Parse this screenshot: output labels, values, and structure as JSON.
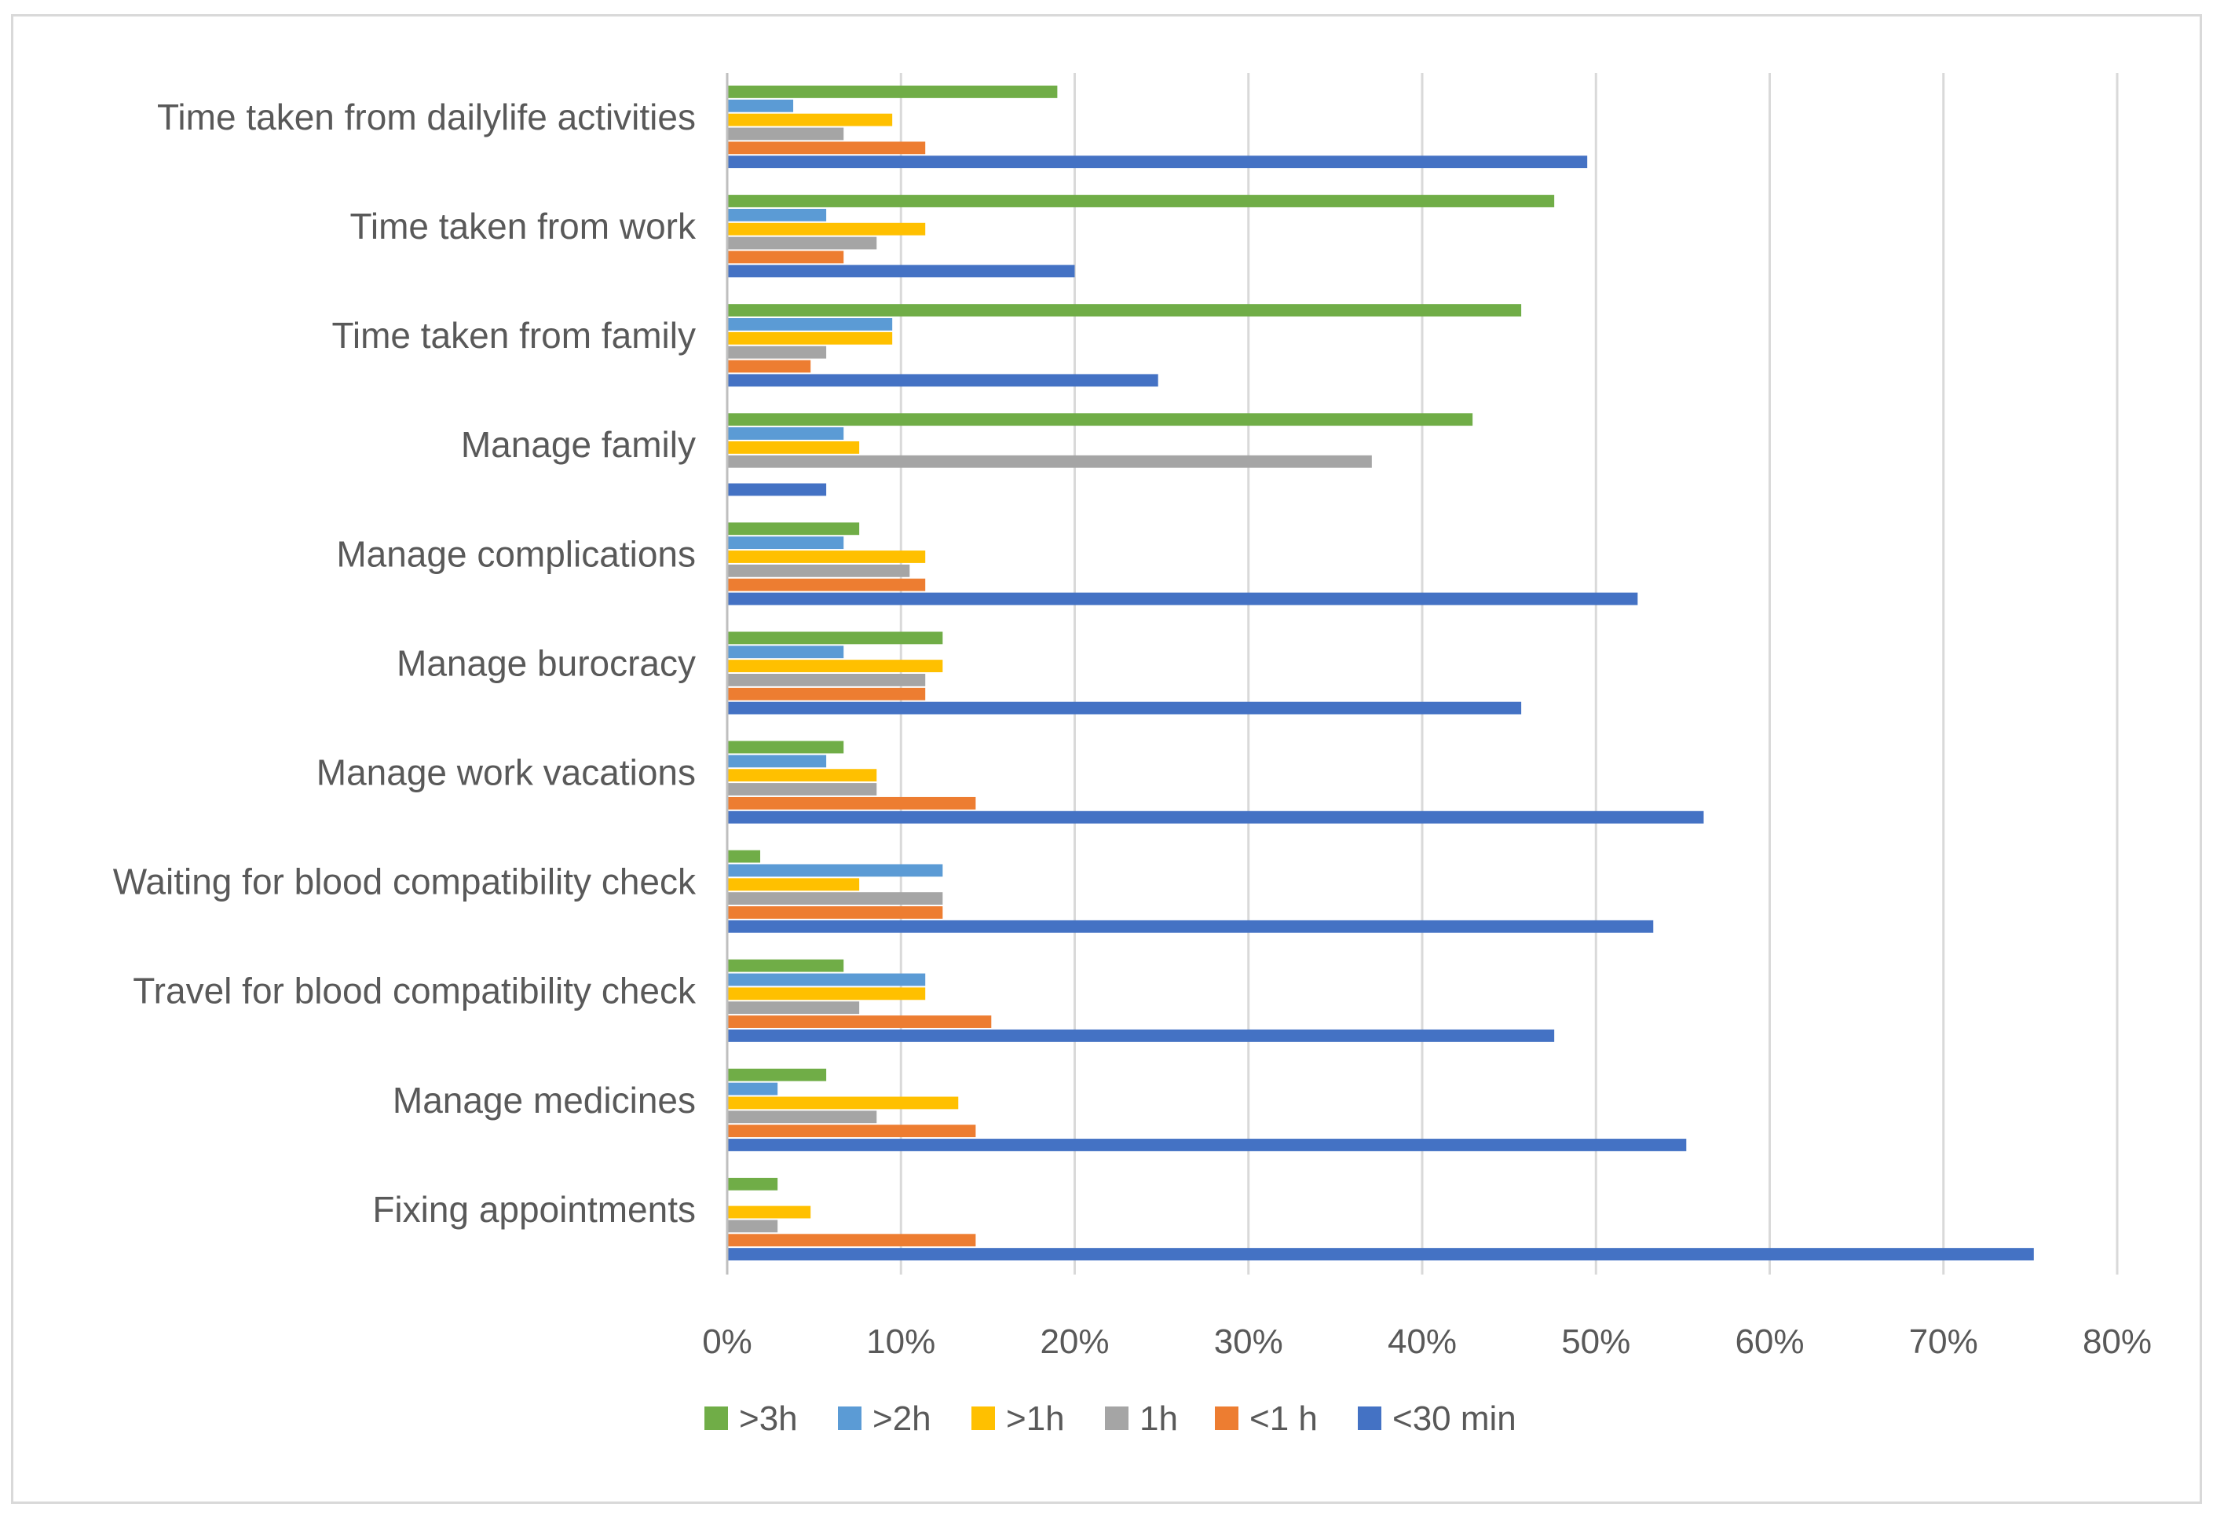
{
  "chart_data": {
    "type": "bar",
    "orientation": "horizontal",
    "categories": [
      "Time taken from dailylife activities",
      "Time taken from work",
      "Time taken from family",
      "Manage family",
      "Manage complications",
      "Manage burocracy",
      "Manage work vacations",
      "Waiting for blood compatibility check",
      "Travel for blood compatibility check",
      "Manage medicines",
      "Fixing appointments"
    ],
    "series": [
      {
        "name": ">3h",
        "color": "#70ad47",
        "values": [
          19,
          47.6,
          45.7,
          42.9,
          7.6,
          12.4,
          6.7,
          1.9,
          6.7,
          5.7,
          2.9
        ]
      },
      {
        "name": ">2h",
        "color": "#5b9bd5",
        "values": [
          3.8,
          5.7,
          9.5,
          6.7,
          6.7,
          6.7,
          5.7,
          12.4,
          11.4,
          2.9,
          0
        ]
      },
      {
        "name": ">1h",
        "color": "#ffc000",
        "values": [
          9.5,
          11.4,
          9.5,
          7.6,
          11.4,
          12.4,
          8.6,
          7.6,
          11.4,
          13.3,
          4.8
        ]
      },
      {
        "name": "1h",
        "color": "#a5a5a5",
        "values": [
          6.7,
          8.6,
          5.7,
          37.1,
          10.5,
          11.4,
          8.6,
          12.4,
          7.6,
          8.6,
          2.9
        ]
      },
      {
        "name": "<1 h",
        "color": "#ed7d31",
        "values": [
          11.4,
          6.7,
          4.8,
          0,
          11.4,
          11.4,
          14.3,
          12.4,
          15.2,
          14.3,
          14.3
        ]
      },
      {
        "name": "<30 min",
        "color": "#4472c4",
        "values": [
          49.5,
          20,
          24.8,
          5.7,
          52.4,
          45.7,
          56.2,
          53.3,
          47.6,
          55.2,
          75.2
        ]
      }
    ],
    "x_ticks": [
      "0%",
      "10%",
      "20%",
      "30%",
      "40%",
      "50%",
      "60%",
      "70%",
      "80%"
    ],
    "xlim": [
      0,
      80
    ],
    "grid": true,
    "legend_position": "bottom"
  }
}
